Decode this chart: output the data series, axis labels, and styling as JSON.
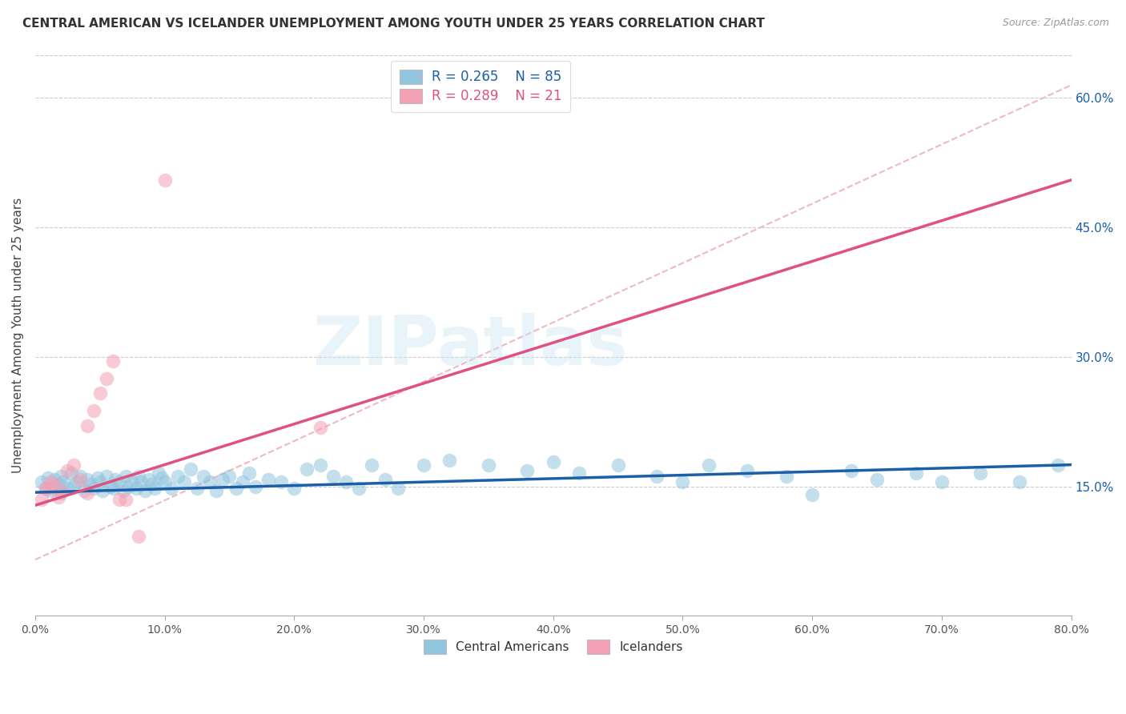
{
  "title": "CENTRAL AMERICAN VS ICELANDER UNEMPLOYMENT AMONG YOUTH UNDER 25 YEARS CORRELATION CHART",
  "source": "Source: ZipAtlas.com",
  "ylabel": "Unemployment Among Youth under 25 years",
  "xmin": 0.0,
  "xmax": 0.8,
  "ymin": 0.0,
  "ymax": 0.65,
  "xticks": [
    0.0,
    0.1,
    0.2,
    0.3,
    0.4,
    0.5,
    0.6,
    0.7,
    0.8
  ],
  "ytick_vals": [
    0.15,
    0.3,
    0.45,
    0.6
  ],
  "ytick_labels_right": [
    "15.0%",
    "30.0%",
    "45.0%",
    "60.0%"
  ],
  "xtick_labels": [
    "0.0%",
    "10.0%",
    "20.0%",
    "30.0%",
    "40.0%",
    "50.0%",
    "60.0%",
    "70.0%",
    "80.0%"
  ],
  "legend_r1": "R = 0.265",
  "legend_n1": "N = 85",
  "legend_r2": "R = 0.289",
  "legend_n2": "N = 21",
  "legend_label1": "Central Americans",
  "legend_label2": "Icelanders",
  "blue_scatter_color": "#92c5de",
  "blue_line_color": "#1a5fa8",
  "pink_scatter_color": "#f4a0b5",
  "pink_line_color": "#e05080",
  "dashed_line_color": "#f0b8c0",
  "watermark": "ZIPatlas",
  "blue_scatter_x": [
    0.005,
    0.008,
    0.01,
    0.012,
    0.015,
    0.018,
    0.02,
    0.02,
    0.022,
    0.025,
    0.028,
    0.03,
    0.032,
    0.035,
    0.038,
    0.04,
    0.042,
    0.045,
    0.048,
    0.05,
    0.052,
    0.055,
    0.058,
    0.06,
    0.062,
    0.065,
    0.068,
    0.07,
    0.072,
    0.075,
    0.078,
    0.08,
    0.082,
    0.085,
    0.088,
    0.09,
    0.092,
    0.095,
    0.098,
    0.1,
    0.105,
    0.11,
    0.115,
    0.12,
    0.125,
    0.13,
    0.135,
    0.14,
    0.145,
    0.15,
    0.155,
    0.16,
    0.165,
    0.17,
    0.18,
    0.19,
    0.2,
    0.21,
    0.22,
    0.23,
    0.24,
    0.25,
    0.26,
    0.27,
    0.28,
    0.3,
    0.32,
    0.35,
    0.38,
    0.4,
    0.42,
    0.45,
    0.48,
    0.5,
    0.52,
    0.55,
    0.58,
    0.6,
    0.63,
    0.65,
    0.68,
    0.7,
    0.73,
    0.76,
    0.79
  ],
  "blue_scatter_y": [
    0.155,
    0.148,
    0.16,
    0.145,
    0.158,
    0.152,
    0.142,
    0.162,
    0.155,
    0.148,
    0.165,
    0.15,
    0.155,
    0.162,
    0.145,
    0.158,
    0.152,
    0.148,
    0.16,
    0.155,
    0.145,
    0.162,
    0.15,
    0.148,
    0.158,
    0.155,
    0.145,
    0.162,
    0.15,
    0.155,
    0.148,
    0.162,
    0.155,
    0.145,
    0.158,
    0.152,
    0.148,
    0.165,
    0.16,
    0.155,
    0.148,
    0.162,
    0.155,
    0.17,
    0.148,
    0.162,
    0.155,
    0.145,
    0.158,
    0.162,
    0.148,
    0.155,
    0.165,
    0.15,
    0.158,
    0.155,
    0.148,
    0.17,
    0.175,
    0.162,
    0.155,
    0.148,
    0.175,
    0.158,
    0.148,
    0.175,
    0.18,
    0.175,
    0.168,
    0.178,
    0.165,
    0.175,
    0.162,
    0.155,
    0.175,
    0.168,
    0.162,
    0.14,
    0.168,
    0.158,
    0.165,
    0.155,
    0.165,
    0.155,
    0.175
  ],
  "pink_scatter_x": [
    0.005,
    0.008,
    0.01,
    0.012,
    0.015,
    0.018,
    0.02,
    0.025,
    0.03,
    0.035,
    0.04,
    0.04,
    0.045,
    0.05,
    0.055,
    0.06,
    0.065,
    0.07,
    0.08,
    0.1,
    0.22
  ],
  "pink_scatter_y": [
    0.135,
    0.148,
    0.148,
    0.155,
    0.152,
    0.138,
    0.145,
    0.168,
    0.175,
    0.158,
    0.142,
    0.22,
    0.238,
    0.258,
    0.275,
    0.295,
    0.135,
    0.135,
    0.092,
    0.505,
    0.218
  ],
  "blue_line_x": [
    0.0,
    0.8
  ],
  "blue_line_y": [
    0.143,
    0.175
  ],
  "pink_line_x": [
    0.0,
    0.8
  ],
  "pink_line_y": [
    0.128,
    0.505
  ],
  "dashed_line_x": [
    0.0,
    0.8
  ],
  "dashed_line_y": [
    0.065,
    0.615
  ]
}
